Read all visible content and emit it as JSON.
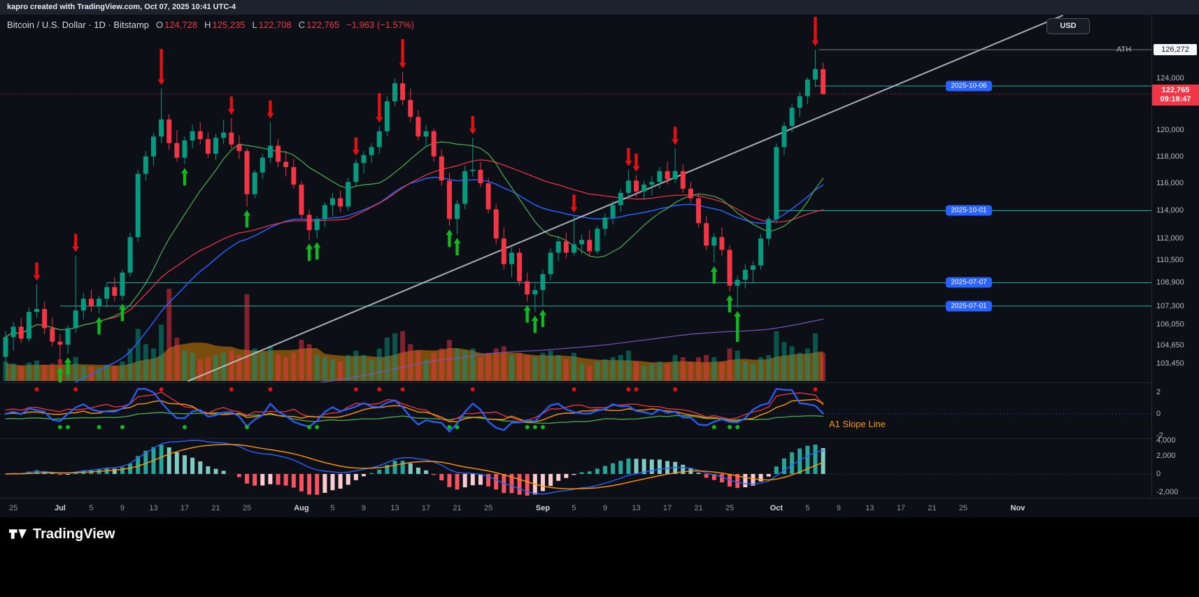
{
  "topbar": {
    "attribution": "kapro created with TradingView.com, Oct 07, 2025 10:41 UTC-4"
  },
  "header": {
    "title": "Bitcoin / U.S. Dollar · 1D · Bitstamp",
    "ohlc": {
      "o_label": "O",
      "o": "124,728",
      "h_label": "H",
      "h": "125,235",
      "l_label": "L",
      "l": "122,708",
      "c_label": "C",
      "c": "122,765",
      "change": "−1,963 (−1.57%)"
    }
  },
  "toolbar": {
    "currency_button": "USD"
  },
  "price_axis": {
    "labels": [
      "124,000",
      "120,000",
      "118,000",
      "116,000",
      "114,000",
      "112,000",
      "110,500",
      "108,900",
      "107,300",
      "106,050",
      "104,650",
      "103,450"
    ],
    "ath": {
      "label": "ATH",
      "value": "126,272",
      "price": 126272
    },
    "last": {
      "value": "122,765",
      "countdown": "09:18:47",
      "price": 122765
    }
  },
  "rays": [
    {
      "label": "2025-10-06",
      "price": 123400,
      "start_index": 104
    },
    {
      "label": "2025-10-01",
      "price": 114000,
      "start_index": 99
    },
    {
      "label": "2025-07-07",
      "price": 108900,
      "start_index": 13
    },
    {
      "label": "2025-07-01",
      "price": 107300,
      "start_index": 7
    }
  ],
  "time_axis": {
    "labels": [
      [
        "25",
        1
      ],
      [
        "Jul",
        7
      ],
      [
        "5",
        11
      ],
      [
        "9",
        15
      ],
      [
        "13",
        19
      ],
      [
        "17",
        23
      ],
      [
        "21",
        27
      ],
      [
        "25",
        31
      ],
      [
        "Aug",
        38
      ],
      [
        "5",
        42
      ],
      [
        "9",
        46
      ],
      [
        "13",
        50
      ],
      [
        "17",
        54
      ],
      [
        "21",
        58
      ],
      [
        "25",
        62
      ],
      [
        "Sep",
        69
      ],
      [
        "5",
        73
      ],
      [
        "9",
        77
      ],
      [
        "13",
        81
      ],
      [
        "17",
        85
      ],
      [
        "21",
        89
      ],
      [
        "25",
        93
      ],
      [
        "Oct",
        99
      ],
      [
        "5",
        103
      ],
      [
        "9",
        107
      ],
      [
        "13",
        111
      ],
      [
        "17",
        115
      ],
      [
        "21",
        119
      ],
      [
        "25",
        123
      ],
      [
        "Nov",
        130
      ]
    ]
  },
  "indicator1": {
    "name": "A1 Slope Line",
    "axis_labels": [
      "2",
      "0",
      "-2"
    ]
  },
  "indicator2": {
    "axis_labels": [
      "4,000",
      "2,000",
      "0",
      "-2,000"
    ]
  },
  "footer": {
    "brand": "TradingView"
  },
  "chart_data": {
    "type": "candlestick",
    "symbol": "BTCUSD",
    "exchange": "Bitstamp",
    "timeframe": "1D",
    "scale": "log",
    "title": "Bitcoin / U.S. Dollar",
    "ath": {
      "price": 126272,
      "date": "2025-10-06"
    },
    "last": {
      "price": 122765,
      "change": -1963,
      "change_pct": -1.57
    },
    "candles": [
      [
        "2025-06-24",
        103900,
        105600,
        103400,
        105200,
        18
      ],
      [
        "2025-06-25",
        105200,
        106200,
        104300,
        105900,
        16
      ],
      [
        "2025-06-26",
        105900,
        106500,
        104800,
        105100,
        14
      ],
      [
        "2025-06-27",
        105100,
        107200,
        104900,
        106900,
        17
      ],
      [
        "2025-06-28",
        106900,
        108800,
        106500,
        107100,
        19
      ],
      [
        "2025-06-29",
        107100,
        107600,
        105400,
        105800,
        15
      ],
      [
        "2025-06-30",
        105800,
        106500,
        104600,
        104900,
        16
      ],
      [
        "2025-07-01",
        104900,
        105400,
        103450,
        104700,
        20
      ],
      [
        "2025-07-02",
        104700,
        106000,
        104100,
        105800,
        17
      ],
      [
        "2025-07-03",
        105800,
        110800,
        105500,
        107000,
        22
      ],
      [
        "2025-07-04",
        107000,
        108200,
        106400,
        107800,
        14
      ],
      [
        "2025-07-05",
        107800,
        108400,
        106900,
        107300,
        13
      ],
      [
        "2025-07-06",
        107300,
        108000,
        106800,
        107800,
        12
      ],
      [
        "2025-07-07",
        107800,
        108900,
        107200,
        108600,
        15
      ],
      [
        "2025-07-08",
        108600,
        109300,
        107600,
        108000,
        14
      ],
      [
        "2025-07-09",
        108000,
        109800,
        107700,
        109600,
        18
      ],
      [
        "2025-07-10",
        109600,
        112400,
        109300,
        112100,
        30
      ],
      [
        "2025-07-11",
        112100,
        117000,
        111800,
        116700,
        48
      ],
      [
        "2025-07-12",
        116700,
        118400,
        116200,
        118000,
        34
      ],
      [
        "2025-07-13",
        118000,
        119800,
        117300,
        119500,
        30
      ],
      [
        "2025-07-14",
        119500,
        123200,
        119000,
        120800,
        52
      ],
      [
        "2025-07-15",
        120800,
        121200,
        118500,
        119000,
        85
      ],
      [
        "2025-07-16",
        119000,
        120000,
        117600,
        117900,
        40
      ],
      [
        "2025-07-17",
        117900,
        119500,
        117400,
        119200,
        28
      ],
      [
        "2025-07-18",
        119200,
        120400,
        118600,
        119900,
        26
      ],
      [
        "2025-07-19",
        119900,
        120600,
        118900,
        119300,
        20
      ],
      [
        "2025-07-20",
        119300,
        119800,
        117900,
        118200,
        22
      ],
      [
        "2025-07-21",
        118200,
        119700,
        117700,
        119400,
        24
      ],
      [
        "2025-07-22",
        119400,
        120800,
        118900,
        119800,
        26
      ],
      [
        "2025-07-23",
        119800,
        120900,
        118600,
        118900,
        28
      ],
      [
        "2025-07-24",
        118900,
        119600,
        117800,
        118400,
        24
      ],
      [
        "2025-07-25",
        118400,
        118600,
        114300,
        115200,
        80
      ],
      [
        "2025-07-26",
        115200,
        117000,
        114900,
        116800,
        30
      ],
      [
        "2025-07-27",
        116800,
        118200,
        116300,
        117900,
        26
      ],
      [
        "2025-07-28",
        117900,
        120600,
        117500,
        118800,
        32
      ],
      [
        "2025-07-29",
        118800,
        119300,
        117200,
        117600,
        24
      ],
      [
        "2025-07-30",
        117600,
        118400,
        116500,
        117200,
        22
      ],
      [
        "2025-07-31",
        117200,
        117800,
        115600,
        115900,
        26
      ],
      [
        "2025-08-01",
        115900,
        116200,
        113400,
        113700,
        38
      ],
      [
        "2025-08-02",
        113700,
        114100,
        111900,
        112600,
        34
      ],
      [
        "2025-08-03",
        112600,
        113600,
        112000,
        113400,
        24
      ],
      [
        "2025-08-04",
        113400,
        114600,
        112800,
        114400,
        22
      ],
      [
        "2025-08-05",
        114400,
        115300,
        113600,
        114900,
        20
      ],
      [
        "2025-08-06",
        114900,
        115500,
        113900,
        114300,
        18
      ],
      [
        "2025-08-07",
        114300,
        116400,
        114000,
        116100,
        24
      ],
      [
        "2025-08-08",
        116100,
        117800,
        115800,
        117500,
        28
      ],
      [
        "2025-08-09",
        117500,
        118400,
        116700,
        118100,
        24
      ],
      [
        "2025-08-10",
        118100,
        119000,
        117500,
        118700,
        20
      ],
      [
        "2025-08-11",
        118700,
        120300,
        118200,
        119900,
        30
      ],
      [
        "2025-08-12",
        119900,
        122600,
        119500,
        122200,
        40
      ],
      [
        "2025-08-13",
        122200,
        124000,
        121800,
        123600,
        44
      ],
      [
        "2025-08-14",
        123600,
        124500,
        121900,
        122300,
        46
      ],
      [
        "2025-08-15",
        122300,
        123200,
        120600,
        121000,
        34
      ],
      [
        "2025-08-16",
        121000,
        121500,
        119200,
        119500,
        28
      ],
      [
        "2025-08-17",
        119500,
        120400,
        118700,
        119900,
        20
      ],
      [
        "2025-08-18",
        119900,
        120100,
        117600,
        118000,
        26
      ],
      [
        "2025-08-19",
        118000,
        118500,
        115800,
        116200,
        30
      ],
      [
        "2025-08-20",
        116200,
        116800,
        112900,
        113400,
        38
      ],
      [
        "2025-08-21",
        113400,
        114800,
        112300,
        114500,
        30
      ],
      [
        "2025-08-22",
        114500,
        117300,
        114100,
        116900,
        28
      ],
      [
        "2025-08-23",
        116900,
        119400,
        116500,
        117000,
        30
      ],
      [
        "2025-08-24",
        117000,
        117600,
        115700,
        116000,
        22
      ],
      [
        "2025-08-25",
        116000,
        116400,
        113800,
        114100,
        26
      ],
      [
        "2025-08-26",
        114100,
        114500,
        111600,
        112000,
        30
      ],
      [
        "2025-08-27",
        112000,
        112800,
        109800,
        110200,
        32
      ],
      [
        "2025-08-28",
        110200,
        111400,
        109300,
        111000,
        24
      ],
      [
        "2025-08-29",
        111000,
        111300,
        108700,
        109000,
        26
      ],
      [
        "2025-08-30",
        109000,
        109600,
        107600,
        108100,
        24
      ],
      [
        "2025-08-31",
        108100,
        108800,
        106900,
        108400,
        22
      ],
      [
        "2025-09-01",
        108400,
        109800,
        107300,
        109500,
        26
      ],
      [
        "2025-09-02",
        109500,
        111300,
        109100,
        111000,
        28
      ],
      [
        "2025-09-03",
        111000,
        112200,
        110400,
        111800,
        24
      ],
      [
        "2025-09-04",
        111800,
        112400,
        110600,
        111000,
        20
      ],
      [
        "2025-09-05",
        111000,
        113600,
        110800,
        111600,
        26
      ],
      [
        "2025-09-06",
        111600,
        112300,
        110900,
        111900,
        16
      ],
      [
        "2025-09-07",
        111900,
        112600,
        110700,
        111100,
        14
      ],
      [
        "2025-09-08",
        111100,
        112900,
        110900,
        112700,
        18
      ],
      [
        "2025-09-09",
        112700,
        113800,
        112200,
        113500,
        20
      ],
      [
        "2025-09-10",
        113500,
        114700,
        113000,
        114400,
        22
      ],
      [
        "2025-09-11",
        114400,
        115600,
        113900,
        115300,
        24
      ],
      [
        "2025-09-12",
        115300,
        117000,
        114900,
        116200,
        28
      ],
      [
        "2025-09-13",
        116200,
        116600,
        115000,
        115400,
        18
      ],
      [
        "2025-09-14",
        115400,
        116200,
        114800,
        115900,
        14
      ],
      [
        "2025-09-15",
        115900,
        116500,
        115100,
        116100,
        16
      ],
      [
        "2025-09-16",
        116100,
        117200,
        115600,
        116900,
        18
      ],
      [
        "2025-09-17",
        116900,
        117600,
        115900,
        116300,
        16
      ],
      [
        "2025-09-18",
        116300,
        118600,
        116000,
        116900,
        24
      ],
      [
        "2025-09-19",
        116900,
        117400,
        115300,
        115600,
        22
      ],
      [
        "2025-09-20",
        115600,
        116100,
        114600,
        114900,
        18
      ],
      [
        "2025-09-21",
        114900,
        115300,
        112800,
        113100,
        22
      ],
      [
        "2025-09-22",
        113100,
        113600,
        111200,
        111500,
        24
      ],
      [
        "2025-09-23",
        111500,
        112400,
        110300,
        112100,
        22
      ],
      [
        "2025-09-24",
        112100,
        112800,
        110800,
        111200,
        18
      ],
      [
        "2025-09-25",
        111200,
        111500,
        108300,
        108700,
        30
      ],
      [
        "2025-09-26",
        108700,
        109400,
        107200,
        109100,
        28
      ],
      [
        "2025-09-27",
        109100,
        110200,
        108500,
        109800,
        18
      ],
      [
        "2025-09-28",
        109800,
        110400,
        108900,
        110100,
        16
      ],
      [
        "2025-09-29",
        110100,
        112300,
        109800,
        112000,
        22
      ],
      [
        "2025-09-30",
        112000,
        113600,
        111500,
        113400,
        24
      ],
      [
        "2025-10-01",
        113400,
        119000,
        113100,
        118700,
        46
      ],
      [
        "2025-10-02",
        118700,
        120600,
        118100,
        120300,
        36
      ],
      [
        "2025-10-03",
        120300,
        122000,
        119800,
        121700,
        32
      ],
      [
        "2025-10-04",
        121700,
        122900,
        121000,
        122600,
        26
      ],
      [
        "2025-10-05",
        122600,
        124100,
        122000,
        123900,
        30
      ],
      [
        "2025-10-06",
        123900,
        126272,
        123300,
        124728,
        44
      ],
      [
        "2025-10-07",
        124728,
        125235,
        122708,
        122765,
        26
      ]
    ],
    "markers": {
      "sell": [
        [
          4,
          1
        ],
        [
          9,
          1
        ],
        [
          20,
          2.6
        ],
        [
          29,
          1
        ],
        [
          34,
          1
        ],
        [
          45,
          1
        ],
        [
          48,
          2
        ],
        [
          51,
          2
        ],
        [
          60,
          1
        ],
        [
          73,
          1
        ],
        [
          80,
          1
        ],
        [
          81,
          1
        ],
        [
          86,
          1
        ],
        [
          104,
          2
        ]
      ],
      "buy": [
        [
          7,
          1
        ],
        [
          8,
          1
        ],
        [
          12,
          1
        ],
        [
          15,
          1
        ],
        [
          23,
          1
        ],
        [
          31,
          1
        ],
        [
          39,
          1
        ],
        [
          40,
          1
        ],
        [
          57,
          1
        ],
        [
          58,
          1
        ],
        [
          67,
          1
        ],
        [
          68,
          1
        ],
        [
          69,
          1
        ],
        [
          91,
          1
        ],
        [
          93,
          1
        ],
        [
          94,
          2.2
        ]
      ]
    },
    "trendline": {
      "from": {
        "i": 23.4,
        "price": 102300
      },
      "to": {
        "i": 135.8,
        "price": 129060
      }
    },
    "colors": {
      "up": "#089981",
      "down": "#f23645",
      "sell_arrow": "#e01212",
      "buy_arrow": "#11b81f",
      "ma_fast": "#4caf50",
      "ma_slow": "#f23645",
      "ma_long": "#2962ff",
      "ma_xlong": "#7e57c2",
      "trend": "#c6cad3",
      "ray": "#26a69a",
      "accent_badge": "#2962ff",
      "vol_up": "rgba(8,153,129,0.5)",
      "vol_down": "rgba(242,54,69,0.5)",
      "vol_ma": "rgba(255,152,0,0.45)",
      "macd_pos": "#26a69a",
      "macd_pos_weak": "#7fcac3",
      "macd_neg": "#f7525f",
      "macd_neg_weak": "#fccbcd",
      "macd_line": "#2962ff",
      "signal_line": "#ff9800",
      "slope_label": "#ff9800"
    }
  }
}
